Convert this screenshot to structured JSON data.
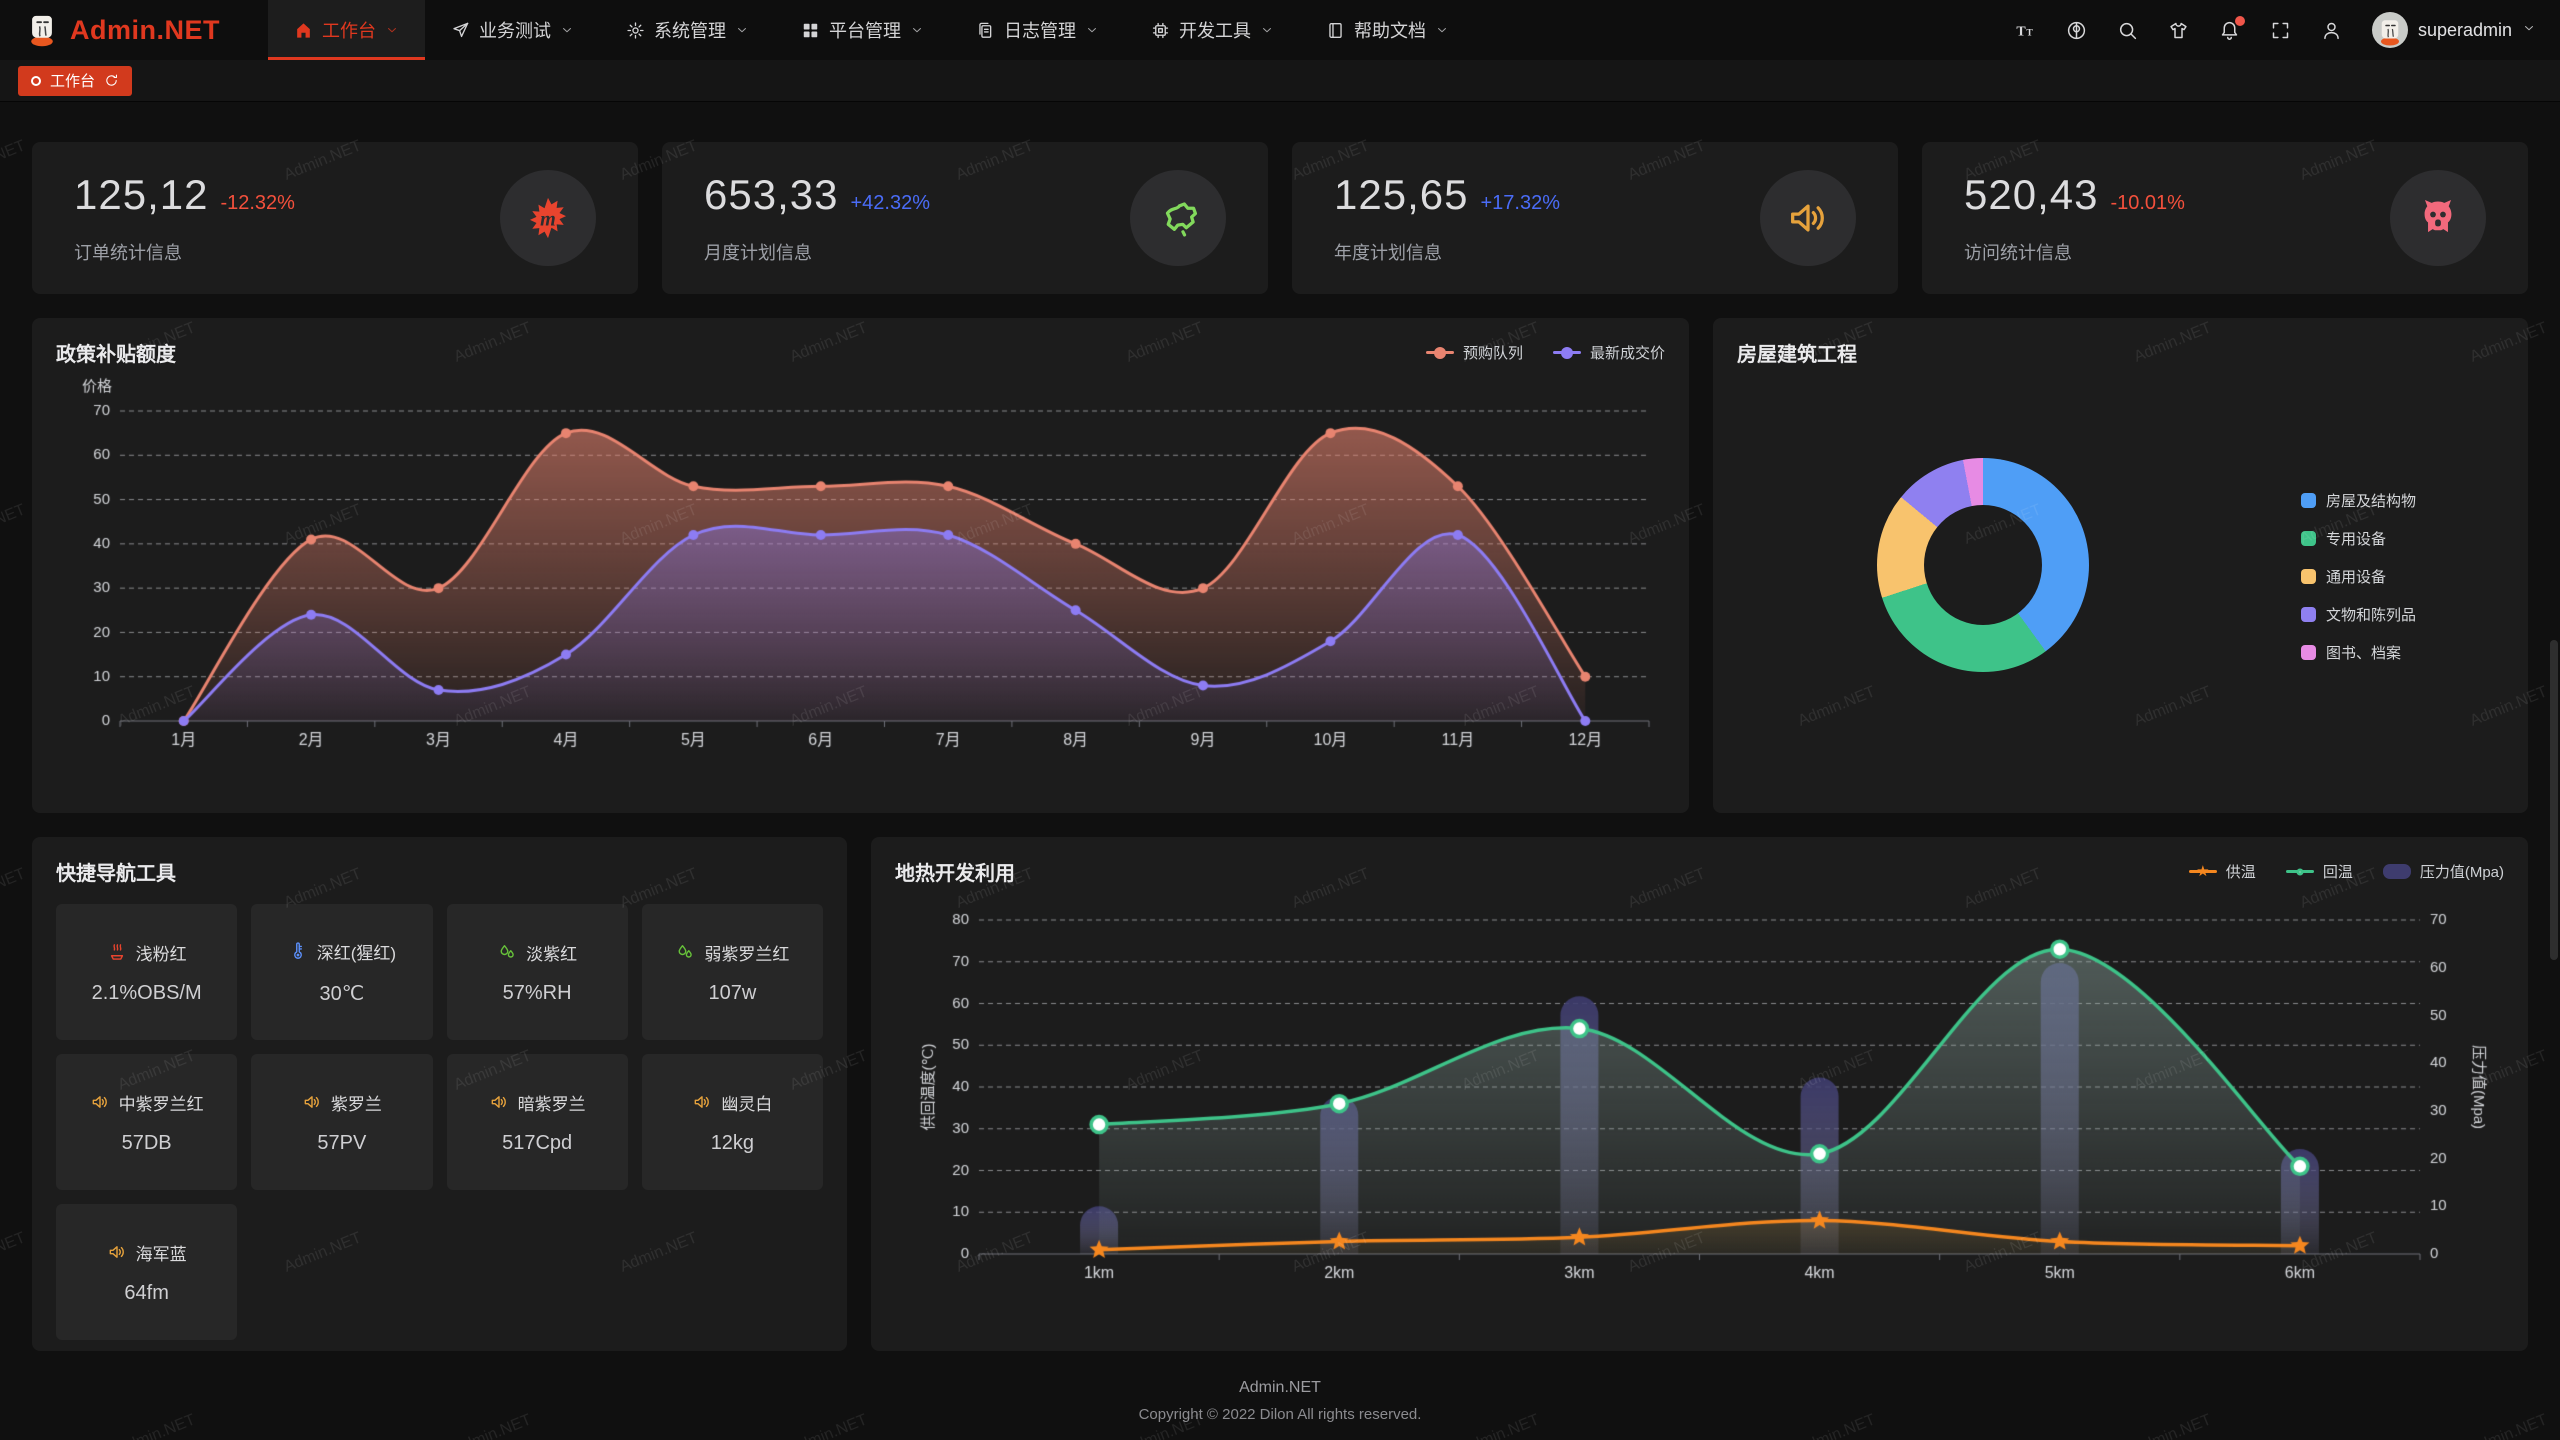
{
  "brand": {
    "title": "Admin.NET"
  },
  "nav": {
    "items": [
      {
        "label": "工作台",
        "icon": "home-icon",
        "active": true
      },
      {
        "label": "业务测试",
        "icon": "send-icon",
        "active": false
      },
      {
        "label": "系统管理",
        "icon": "gear-icon",
        "active": false
      },
      {
        "label": "平台管理",
        "icon": "grid-icon",
        "active": false
      },
      {
        "label": "日志管理",
        "icon": "document-icon",
        "active": false
      },
      {
        "label": "开发工具",
        "icon": "cpu-icon",
        "active": false
      },
      {
        "label": "帮助文档",
        "icon": "book-icon",
        "active": false
      }
    ]
  },
  "topbar": {
    "icons": [
      {
        "name": "font-size-icon",
        "badge": false
      },
      {
        "name": "language-icon",
        "badge": false
      },
      {
        "name": "search-icon",
        "badge": false
      },
      {
        "name": "theme-icon",
        "badge": false
      },
      {
        "name": "notification-bell-icon",
        "badge": true
      },
      {
        "name": "fullscreen-icon",
        "badge": false
      },
      {
        "name": "user-outline-icon",
        "badge": false
      }
    ],
    "username": "superadmin"
  },
  "tabbar": {
    "tabs": [
      {
        "label": "工作台",
        "active": true
      }
    ]
  },
  "stats": [
    {
      "value": "125,12",
      "delta": "-12.32%",
      "trend": "down",
      "label": "订单统计信息",
      "icon": "splat-icon",
      "icon_color": "#e8442e"
    },
    {
      "value": "653,33",
      "delta": "+42.32%",
      "trend": "up",
      "label": "月度计划信息",
      "icon": "china-map-icon",
      "icon_color": "#82d95c"
    },
    {
      "value": "125,65",
      "delta": "+17.32%",
      "trend": "up",
      "label": "年度计划信息",
      "icon": "speaker-icon",
      "icon_color": "#e6a23c"
    },
    {
      "value": "520,43",
      "delta": "-10.01%",
      "trend": "down",
      "label": "访问统计信息",
      "icon": "octocat-icon",
      "icon_color": "#f2697c"
    }
  ],
  "chart_data": [
    {
      "id": "subsidy",
      "type": "line",
      "title": "政策补贴额度",
      "ylabel": "价格",
      "ylim": [
        0,
        70
      ],
      "y_step": 10,
      "grid": "dashed",
      "legend_position": "top-right",
      "categories": [
        "1月",
        "2月",
        "3月",
        "4月",
        "5月",
        "6月",
        "7月",
        "8月",
        "9月",
        "10月",
        "11月",
        "12月"
      ],
      "series": [
        {
          "name": "预购队列",
          "color": "#e88470",
          "values": [
            0,
            41,
            30,
            65,
            53,
            53,
            53,
            40,
            30,
            65,
            53,
            10
          ]
        },
        {
          "name": "最新成交价",
          "color": "#8d7cf3",
          "values": [
            0,
            24,
            7,
            15,
            42,
            42,
            42,
            25,
            8,
            18,
            42,
            0
          ]
        }
      ]
    },
    {
      "id": "housing",
      "type": "pie",
      "title": "房屋建筑工程",
      "legend_position": "right",
      "slices": [
        {
          "name": "房屋及结构物",
          "value": 40,
          "color": "#4f9ef6"
        },
        {
          "name": "专用设备",
          "value": 30,
          "color": "#3ec389"
        },
        {
          "name": "通用设备",
          "value": 16,
          "color": "#f8c36d"
        },
        {
          "name": "文物和陈列品",
          "value": 11,
          "color": "#8f80f0"
        },
        {
          "name": "图书、档案",
          "value": 3,
          "color": "#e78be4"
        }
      ]
    },
    {
      "id": "geothermal",
      "type": "mixed",
      "title": "地热开发利用",
      "categories": [
        "1km",
        "2km",
        "3km",
        "4km",
        "5km",
        "6km"
      ],
      "ylabel_left": "供回温度(℃)",
      "ylim_left": [
        0,
        80
      ],
      "ylabel_right": "压力值(Mpa)",
      "ylim_right": [
        0,
        70
      ],
      "grid": "dashed",
      "series": [
        {
          "name": "供温",
          "type": "line",
          "marker": "star",
          "axis": "left",
          "color": "#f5871f",
          "values": [
            1,
            3,
            4,
            8,
            3,
            2
          ]
        },
        {
          "name": "回温",
          "type": "line",
          "marker": "circle",
          "axis": "left",
          "color": "#3ec389",
          "values": [
            31,
            36,
            54,
            24,
            73,
            21
          ]
        },
        {
          "name": "压力值(Mpa)",
          "type": "bar",
          "axis": "right",
          "color": "#3e3c6e",
          "values": [
            10,
            33,
            54,
            37,
            61,
            22
          ]
        }
      ]
    }
  ],
  "quick_nav": {
    "title": "快捷导航工具",
    "items": [
      {
        "icon": "hotspring-icon",
        "icon_color": "#e8442e",
        "name": "浅粉红",
        "value": "2.1%OBS/M"
      },
      {
        "icon": "thermometer-icon",
        "icon_color": "#5b8ff9",
        "name": "深红(猩红)",
        "value": "30℃"
      },
      {
        "icon": "droplets-icon",
        "icon_color": "#67c23a",
        "name": "淡紫红",
        "value": "57%RH"
      },
      {
        "icon": "droplets-icon",
        "icon_color": "#67c23a",
        "name": "弱紫罗兰红",
        "value": "107w"
      },
      {
        "icon": "speaker-icon",
        "icon_color": "#e6a23c",
        "name": "中紫罗兰红",
        "value": "57DB"
      },
      {
        "icon": "speaker-icon",
        "icon_color": "#e6a23c",
        "name": "紫罗兰",
        "value": "57PV"
      },
      {
        "icon": "speaker-icon",
        "icon_color": "#e6a23c",
        "name": "暗紫罗兰",
        "value": "517Cpd"
      },
      {
        "icon": "speaker-icon",
        "icon_color": "#e6a23c",
        "name": "幽灵白",
        "value": "12kg"
      },
      {
        "icon": "speaker-icon",
        "icon_color": "#e6a23c",
        "name": "海军蓝",
        "value": "64fm"
      }
    ]
  },
  "footer": {
    "line1": "Admin.NET",
    "line2": "Copyright © 2022 Dilon All rights reserved."
  },
  "watermark": {
    "text": "Admin.NET"
  },
  "colors": {
    "accent_red": "#d23a1d",
    "delta_down": "#f3503c",
    "delta_up": "#4a6cf7"
  }
}
